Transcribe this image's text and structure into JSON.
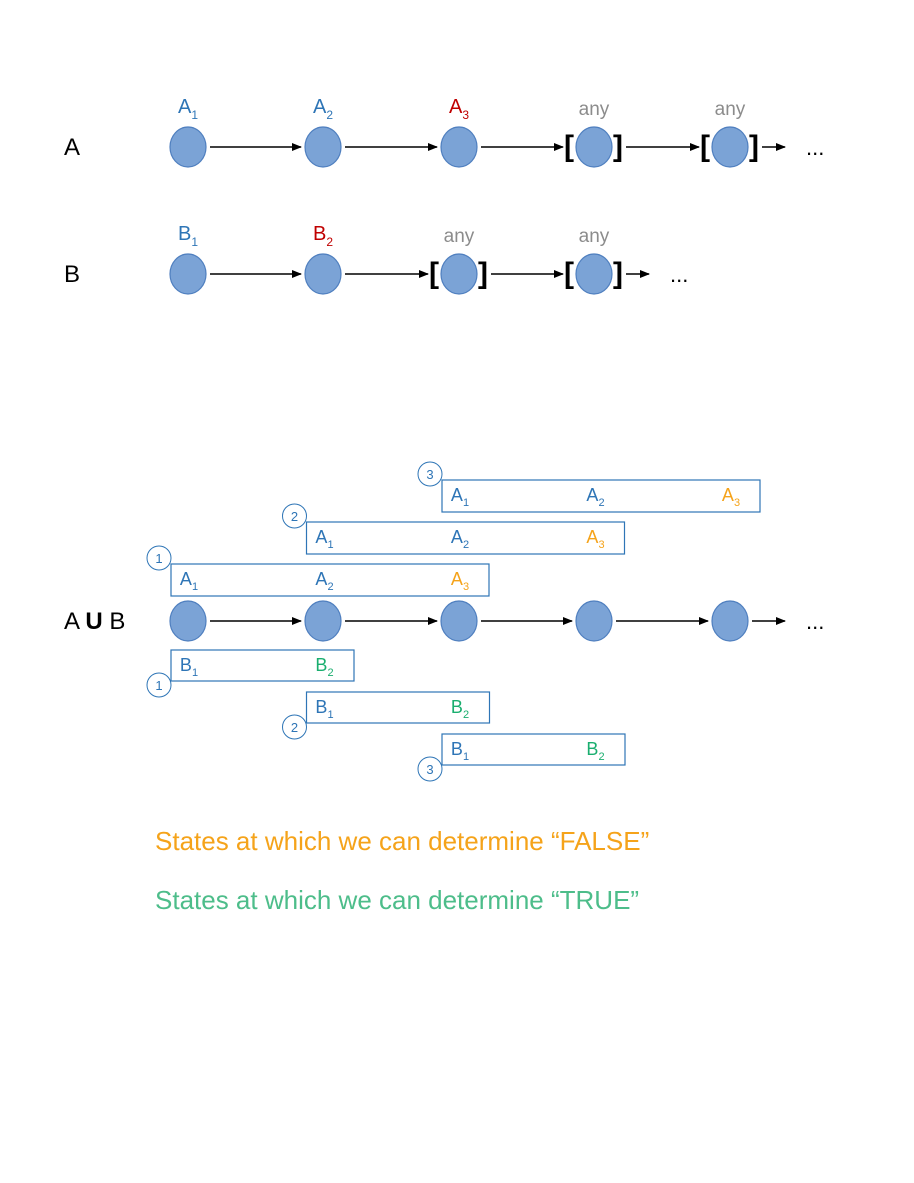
{
  "colors": {
    "node_fill": "#7ba3d6",
    "node_stroke": "#4f7fbf",
    "blue_text": "#2e75b6",
    "red_text": "#c00000",
    "gray_text": "#8c8c8c",
    "orange_text": "#f5a31a",
    "green_text": "#1aae6f",
    "box_stroke": "#2e75b6",
    "arrow": "#000000",
    "legend_false": "#f5a31a",
    "legend_true": "#4dbd8a"
  },
  "rows": {
    "A": {
      "label": "A",
      "nodes": [
        {
          "name": "A",
          "sub": "1",
          "color": "blue",
          "bracket": false
        },
        {
          "name": "A",
          "sub": "2",
          "color": "blue",
          "bracket": false
        },
        {
          "name": "A",
          "sub": "3",
          "color": "red",
          "bracket": false
        },
        {
          "name": "any",
          "sub": "",
          "color": "gray",
          "bracket": true
        },
        {
          "name": "any",
          "sub": "",
          "color": "gray",
          "bracket": true
        }
      ],
      "ellipsis": "..."
    },
    "B": {
      "label": "B",
      "nodes": [
        {
          "name": "B",
          "sub": "1",
          "color": "blue",
          "bracket": false
        },
        {
          "name": "B",
          "sub": "2",
          "color": "red",
          "bracket": false
        },
        {
          "name": "any",
          "sub": "",
          "color": "gray",
          "bracket": true
        },
        {
          "name": "any",
          "sub": "",
          "color": "gray",
          "bracket": true
        }
      ],
      "ellipsis": "..."
    }
  },
  "until": {
    "label_left": "A",
    "label_op": "U",
    "label_right": "B",
    "node_count": 5,
    "ellipsis": "...",
    "a_windows": [
      {
        "step": "1",
        "items": [
          {
            "name": "A",
            "sub": "1",
            "color": "blue"
          },
          {
            "name": "A",
            "sub": "2",
            "color": "blue"
          },
          {
            "name": "A",
            "sub": "3",
            "color": "orange"
          }
        ]
      },
      {
        "step": "2",
        "items": [
          {
            "name": "A",
            "sub": "1",
            "color": "blue"
          },
          {
            "name": "A",
            "sub": "2",
            "color": "blue"
          },
          {
            "name": "A",
            "sub": "3",
            "color": "orange"
          }
        ]
      },
      {
        "step": "3",
        "items": [
          {
            "name": "A",
            "sub": "1",
            "color": "blue"
          },
          {
            "name": "A",
            "sub": "2",
            "color": "blue"
          },
          {
            "name": "A",
            "sub": "3",
            "color": "orange"
          }
        ]
      }
    ],
    "b_windows": [
      {
        "step": "1",
        "items": [
          {
            "name": "B",
            "sub": "1",
            "color": "blue"
          },
          {
            "name": "B",
            "sub": "2",
            "color": "green"
          }
        ]
      },
      {
        "step": "2",
        "items": [
          {
            "name": "B",
            "sub": "1",
            "color": "blue"
          },
          {
            "name": "B",
            "sub": "2",
            "color": "green"
          }
        ]
      },
      {
        "step": "3",
        "items": [
          {
            "name": "B",
            "sub": "1",
            "color": "blue"
          },
          {
            "name": "B",
            "sub": "2",
            "color": "green"
          }
        ]
      }
    ]
  },
  "legend": {
    "false_text": "States at which we can determine “FALSE”",
    "true_text": "States at which we can determine “TRUE”"
  }
}
